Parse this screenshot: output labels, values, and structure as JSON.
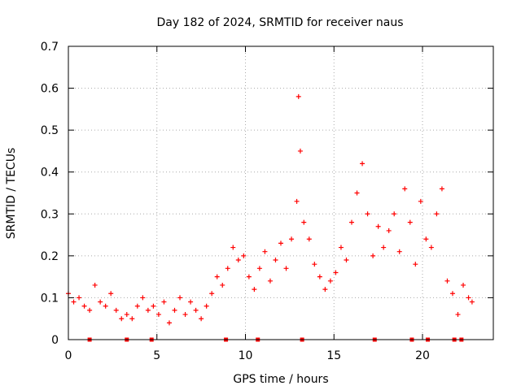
{
  "chart_data": {
    "type": "scatter",
    "title": "Day 182 of 2024, SRMTID for receiver naus",
    "xlabel": "GPS time / hours",
    "ylabel": "SRMTID / TECUs",
    "xlim": [
      0,
      24
    ],
    "ylim": [
      0,
      0.7
    ],
    "xticks": [
      0,
      5,
      10,
      15,
      20
    ],
    "yticks": [
      0,
      0.1,
      0.2,
      0.3,
      0.4,
      0.5,
      0.6,
      0.7
    ],
    "ytick_labels": [
      "0",
      "0.1",
      "0.2",
      "0.3",
      "0.4",
      "0.5",
      "0.6",
      "0.7"
    ],
    "grid": true,
    "marker": "+",
    "color": "#ff0000",
    "series": [
      {
        "name": "SRMTID",
        "x": [
          0.0,
          0.3,
          0.6,
          0.9,
          1.2,
          1.5,
          1.8,
          2.1,
          2.4,
          2.7,
          3.0,
          3.3,
          3.6,
          3.9,
          4.2,
          4.5,
          4.8,
          5.1,
          5.4,
          5.7,
          6.0,
          6.3,
          6.6,
          6.9,
          7.2,
          7.5,
          7.8,
          8.1,
          8.4,
          8.7,
          9.0,
          9.3,
          9.6,
          9.9,
          10.2,
          10.5,
          10.8,
          11.1,
          11.4,
          11.7,
          12.0,
          12.3,
          12.6,
          12.9,
          13.0,
          13.1,
          13.3,
          13.6,
          13.9,
          14.2,
          14.5,
          14.8,
          15.1,
          15.4,
          15.7,
          16.0,
          16.3,
          16.6,
          16.9,
          17.2,
          17.5,
          17.8,
          18.1,
          18.4,
          18.7,
          19.0,
          19.3,
          19.6,
          19.9,
          20.2,
          20.5,
          20.8,
          21.1,
          21.4,
          21.7,
          22.0,
          22.3,
          22.6,
          22.8
        ],
        "y": [
          0.11,
          0.09,
          0.1,
          0.08,
          0.07,
          0.13,
          0.09,
          0.08,
          0.11,
          0.07,
          0.05,
          0.06,
          0.05,
          0.08,
          0.1,
          0.07,
          0.08,
          0.06,
          0.09,
          0.04,
          0.07,
          0.1,
          0.06,
          0.09,
          0.07,
          0.05,
          0.08,
          0.11,
          0.15,
          0.13,
          0.17,
          0.22,
          0.19,
          0.2,
          0.15,
          0.12,
          0.17,
          0.21,
          0.14,
          0.19,
          0.23,
          0.17,
          0.24,
          0.33,
          0.58,
          0.45,
          0.28,
          0.24,
          0.18,
          0.15,
          0.12,
          0.14,
          0.16,
          0.22,
          0.19,
          0.28,
          0.35,
          0.42,
          0.3,
          0.2,
          0.27,
          0.22,
          0.26,
          0.3,
          0.21,
          0.36,
          0.28,
          0.18,
          0.33,
          0.24,
          0.22,
          0.3,
          0.36,
          0.14,
          0.11,
          0.06,
          0.13,
          0.1,
          0.09
        ]
      }
    ],
    "baseline_marks_x": [
      1.2,
      3.3,
      4.7,
      8.9,
      10.7,
      13.2,
      17.3,
      19.4,
      20.3,
      21.8,
      22.2
    ]
  }
}
